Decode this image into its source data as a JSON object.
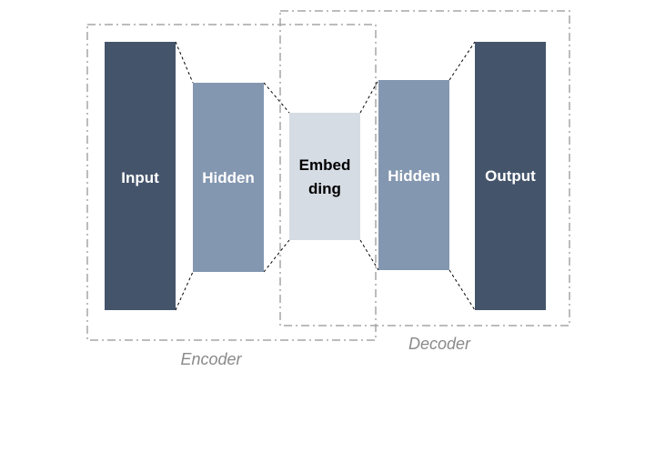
{
  "colors": {
    "dark_block": "#44546a",
    "mid_block": "#8497b0",
    "light_block": "#d6dce4",
    "connector": "#000000",
    "group_border": "#a6a6a6",
    "group_label": "#8a8a8a",
    "light_text": "#ffffff",
    "dark_text": "#000000"
  },
  "blocks": {
    "input": {
      "label": "Input"
    },
    "encoder_hidden": {
      "label": "Hidden"
    },
    "embedding": {
      "label_line1": "Embed",
      "label_line2": "ding"
    },
    "decoder_hidden": {
      "label": "Hidden"
    },
    "output": {
      "label": "Output"
    }
  },
  "groups": {
    "encoder": {
      "label": "Encoder"
    },
    "decoder": {
      "label": "Decoder"
    }
  }
}
